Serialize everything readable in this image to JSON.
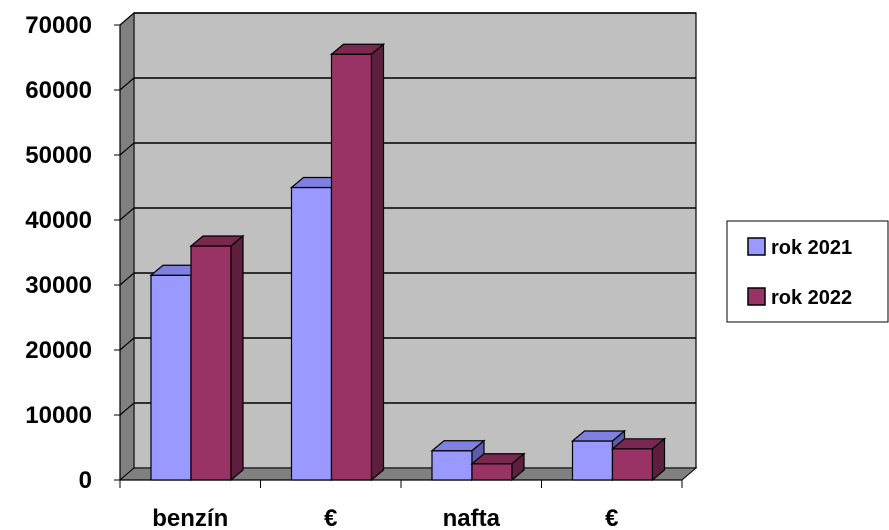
{
  "chart_data": {
    "type": "bar",
    "categories": [
      "benzín",
      "€",
      "nafta",
      "€"
    ],
    "series": [
      {
        "name": "rok 2021",
        "values": [
          31500,
          45000,
          4500,
          6000
        ],
        "color": "#9999ff",
        "top": "#8080e0",
        "side": "#5c5ca8"
      },
      {
        "name": "rok 2022",
        "values": [
          36000,
          65500,
          2500,
          4800
        ],
        "color": "#993366",
        "top": "#7a2850",
        "side": "#5e1f3e"
      }
    ],
    "ylim": [
      0,
      70000
    ],
    "yticks": [
      "0",
      "10000",
      "20000",
      "30000",
      "40000",
      "50000",
      "60000",
      "70000"
    ],
    "grid": true,
    "legend_position": "right",
    "colors": {
      "wall": "#c0c0c0",
      "wall_side": "#808080",
      "floor": "#808080"
    }
  }
}
